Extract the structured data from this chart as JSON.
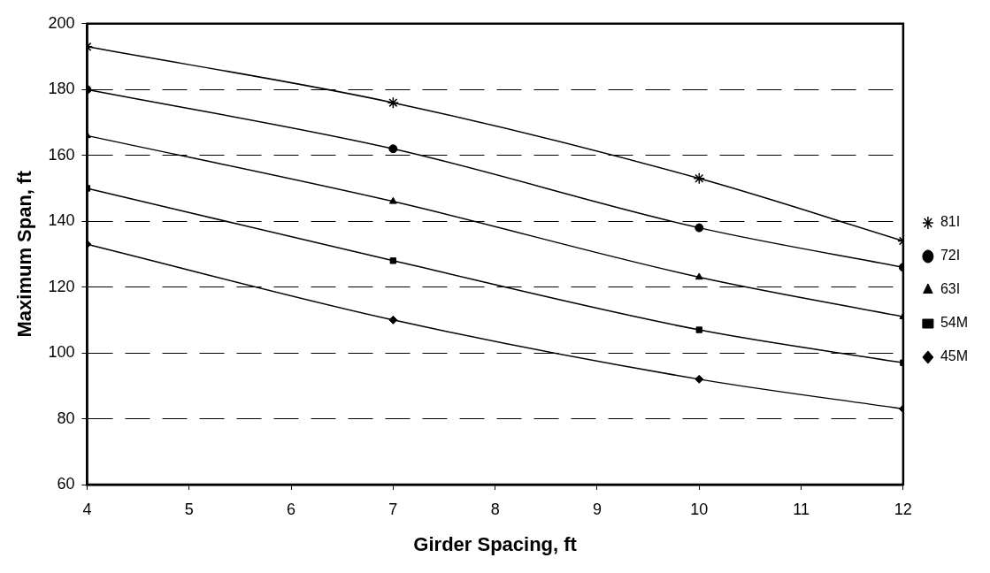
{
  "chart_data": {
    "type": "line",
    "xlabel": "Girder Spacing, ft",
    "ylabel": "Maximum Span, ft",
    "xlim": [
      4,
      12
    ],
    "xticks": [
      4,
      5,
      6,
      7,
      8,
      9,
      10,
      11,
      12
    ],
    "ylim": [
      60,
      200
    ],
    "yticks": [
      60,
      80,
      100,
      120,
      140,
      160,
      180,
      200
    ],
    "grid": "y",
    "legend": "right",
    "line_style": "solid",
    "series": [
      {
        "name": "81I",
        "color": "#000000",
        "marker": "cross",
        "x": [
          4,
          7,
          10,
          12
        ],
        "values": [
          193,
          176,
          153,
          134
        ]
      },
      {
        "name": "72I",
        "color": "#000000",
        "marker": "circle",
        "x": [
          4,
          7,
          10,
          12
        ],
        "values": [
          180,
          162,
          138,
          126
        ]
      },
      {
        "name": "63I",
        "color": "#000000",
        "marker": "triangle",
        "x": [
          4,
          7,
          10,
          12
        ],
        "values": [
          166,
          146,
          123,
          111
        ]
      },
      {
        "name": "54M",
        "color": "#000000",
        "marker": "square",
        "x": [
          4,
          7,
          10,
          12
        ],
        "values": [
          150,
          128,
          107,
          97
        ]
      },
      {
        "name": "45M",
        "color": "#000000",
        "marker": "diamond",
        "x": [
          4,
          7,
          10,
          12
        ],
        "values": [
          133,
          110,
          92,
          83
        ]
      }
    ]
  }
}
